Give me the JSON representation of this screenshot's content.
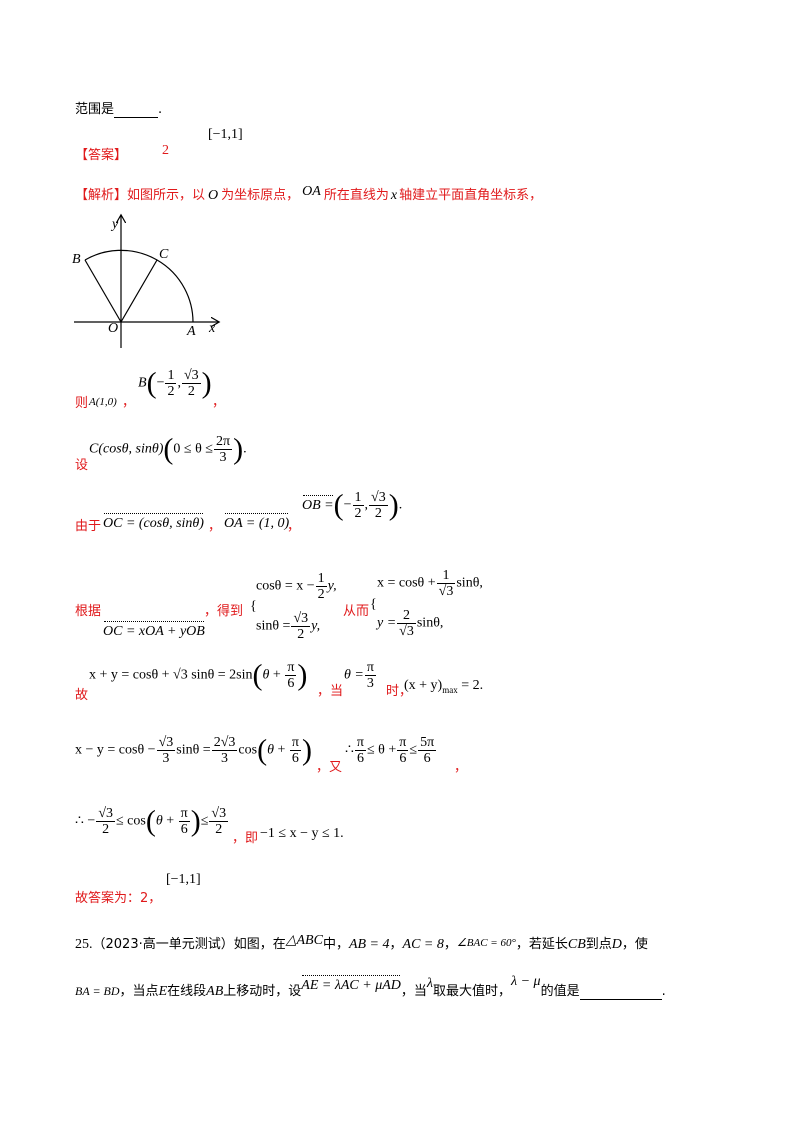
{
  "intro": {
    "text": "范围是",
    "period": "."
  },
  "answer": {
    "label": "【答案】",
    "value1": "2",
    "value2": "[−1,1]"
  },
  "analysis": {
    "label": "【解析】",
    "p1": "如图所示，以",
    "O": "O",
    "p2": "为坐标原点，",
    "OA": "OA",
    "p3": "所在直线为",
    "x": "x",
    "p4": "轴建立平面直角坐标系，"
  },
  "figure": {
    "y": "y",
    "x": "x",
    "B": "B",
    "C": "C",
    "O": "O",
    "A": "A"
  },
  "line_then": {
    "then": "则",
    "A_coord": "A(1,0)",
    "comma": "，",
    "B_lhs": "B",
    "comma2": "，"
  },
  "line_set": {
    "set": "设",
    "C_expr": "C(cosθ, sinθ)",
    "cond": "0 ≤ θ ≤",
    "end": "."
  },
  "line_since": {
    "since": "由于",
    "OC": "OC = (cosθ, sinθ)",
    "comma1": "，",
    "OA": "OA = (1, 0)",
    "comma2": "，",
    "OB": "OB =",
    "end": "."
  },
  "line_system": {
    "according": "根据",
    "vec_eq": "OC = xOA + yOB",
    "got": "，得到",
    "eq1": "cosθ = x −",
    "eq2": "sinθ =",
    "thus": "从而",
    "res1": "x = cosθ +",
    "res2": "y =",
    "res1_end": "sinθ,",
    "res2_end": "sinθ,"
  },
  "line_sum": {
    "so": "故",
    "expr": "x + y = cosθ + √3 sinθ = 2sin",
    "when": "，当",
    "theta": "θ =",
    "time": "时，",
    "max": "(x + y)",
    "max_sub": "max",
    "max_val": "= 2",
    "end": "."
  },
  "line_diff": {
    "expr1": "x − y = cosθ −",
    "expr2": "sinθ =",
    "cos": "cos",
    "also": "，又",
    "therefore": "∴",
    "ineq": "≤ θ +",
    "le": "≤",
    "end": "，"
  },
  "line_range": {
    "therefore": "∴ −",
    "le1": "≤ cos",
    "le2": "≤",
    "that_is": "，即",
    "result": "−1 ≤ x − y ≤ 1",
    "end": "."
  },
  "final": {
    "text": "故答案为：2，",
    "range": "[−1,1]"
  },
  "q25": {
    "num": "25.",
    "source": "（2023·高一单元测试）如图，在",
    "tri": "△ABC",
    "in": "中，",
    "ab": "AB = 4",
    "c1": "，",
    "ac": "AC = 8",
    "c2": "，",
    "angle": "∠BAC = 60°",
    "c3": "，若延长",
    "cb": "CB",
    "to": "到点",
    "d": "D",
    "make": "，使",
    "eq": "BA = BD",
    "when": "，当点",
    "e": "E",
    "on": "在线段",
    "ab2": "AB",
    "move": "上移动时，设",
    "vec": "AE = λAC + μAD",
    "when2": "，当",
    "lambda": "λ",
    "take": "取最大值时，",
    "diff": "λ − μ",
    "value": "的值是",
    "period": "."
  },
  "fractions": {
    "half_n": "1",
    "half_d": "2",
    "r3_n": "√3",
    "r3_d": "2",
    "twopi_n": "2π",
    "twopi_d": "3",
    "inv_r3_n": "1",
    "inv_r3_d": "√3",
    "two_r3_n": "2",
    "two_r3_d": "√3",
    "pi_n": "π",
    "six": "6",
    "three": "3",
    "r3_3_n": "√3",
    "two_r3_3_n": "2√3",
    "fivepi_n": "5π"
  }
}
